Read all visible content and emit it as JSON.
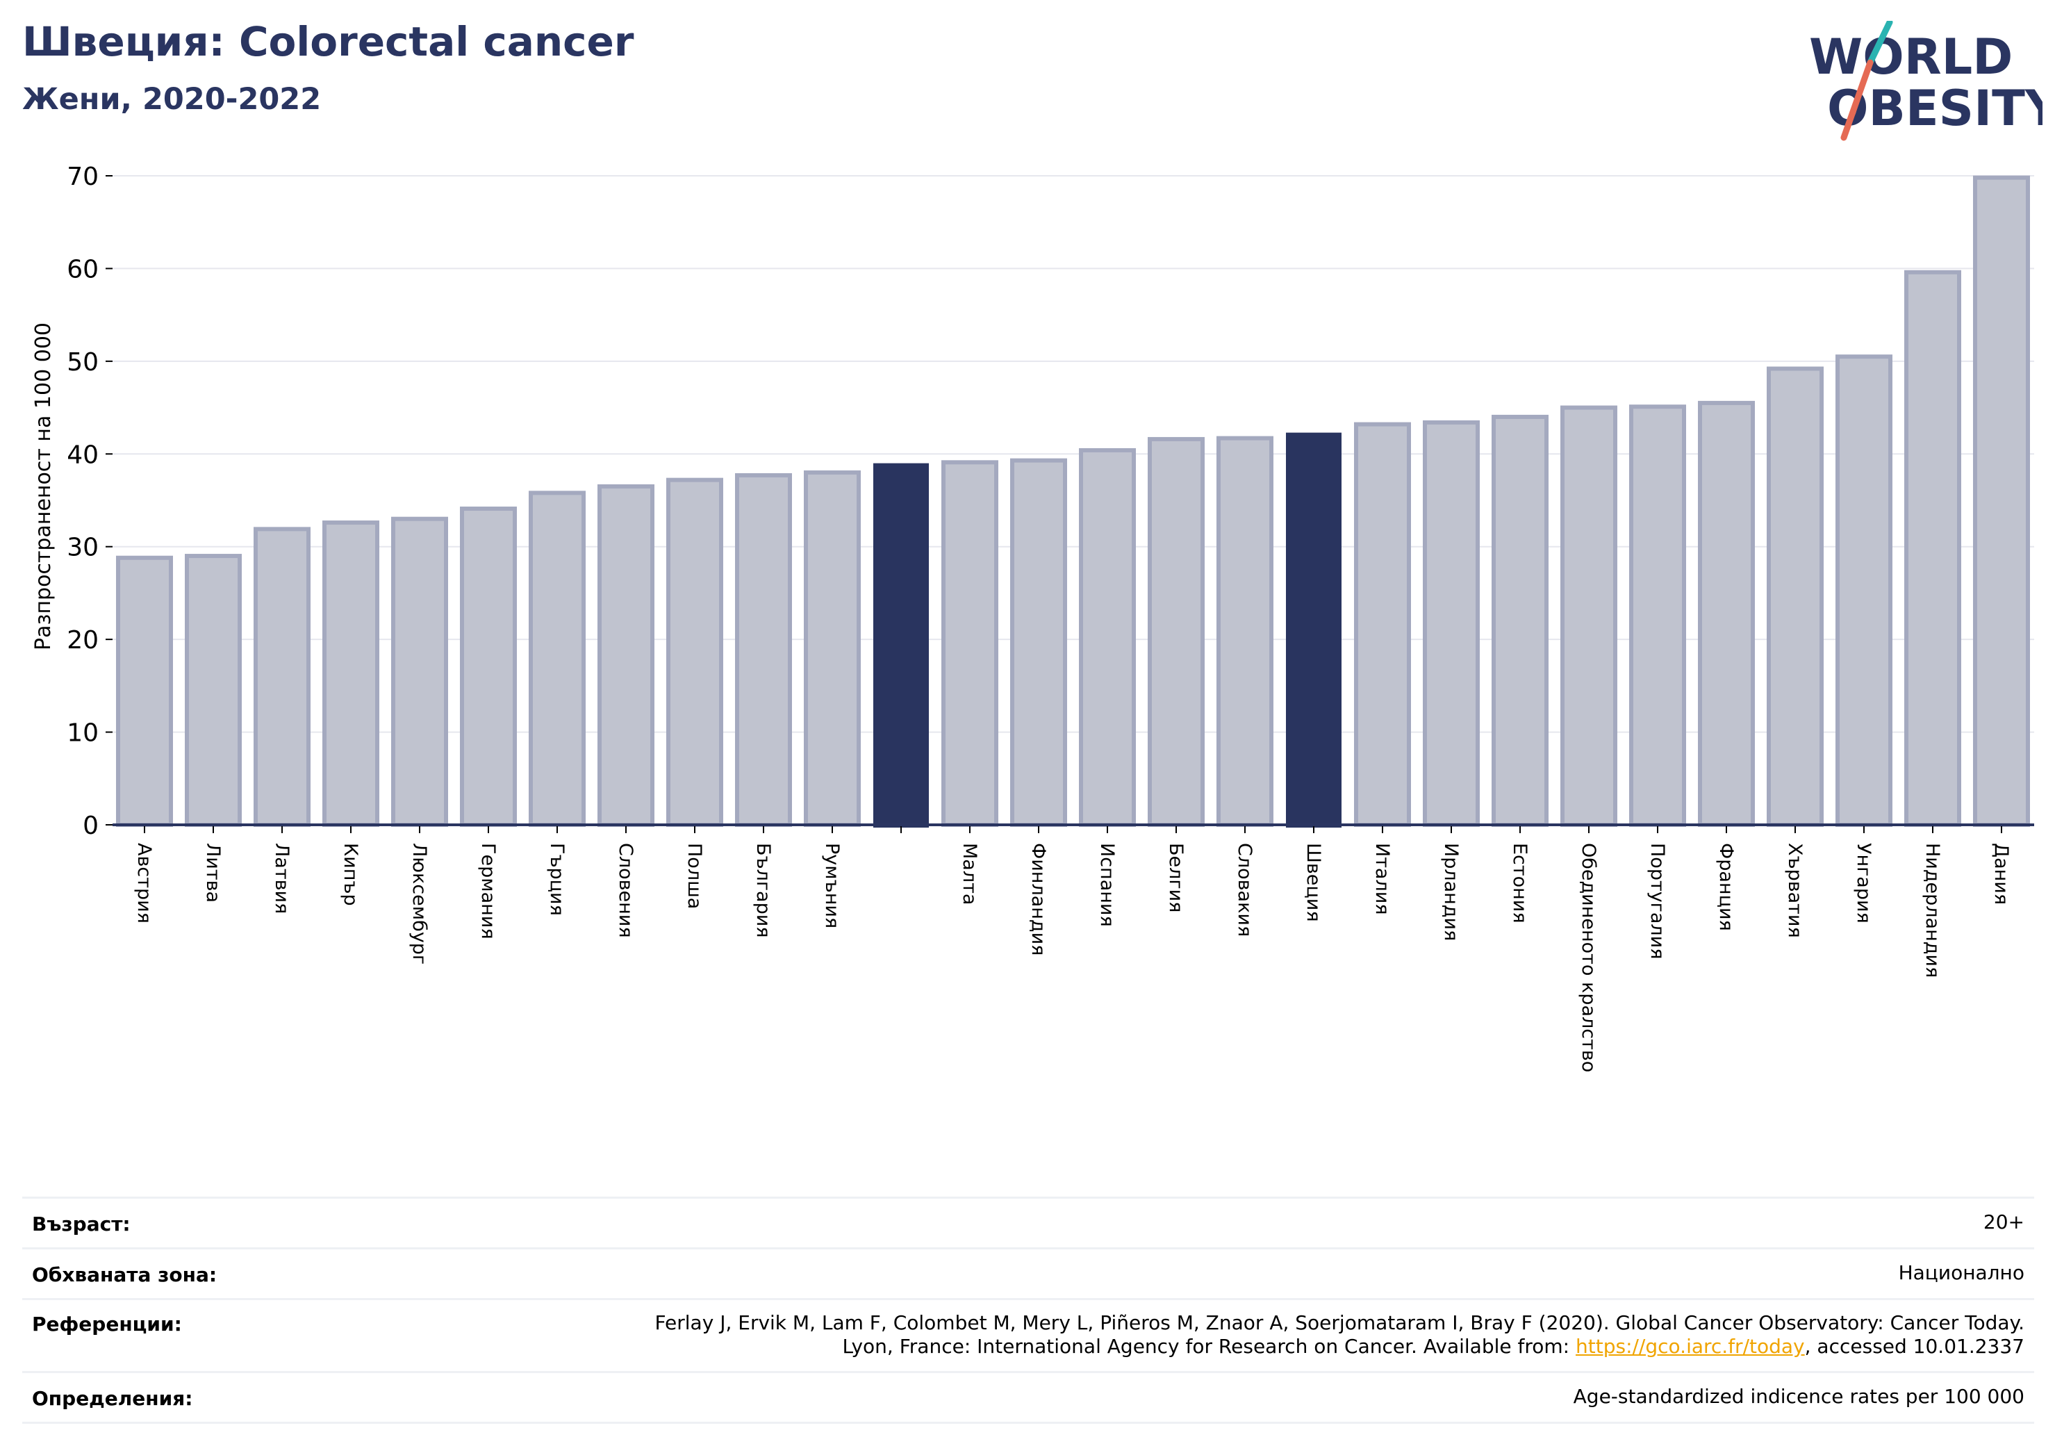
{
  "header": {
    "title": "Швеция: Colorectal cancer",
    "subtitle": "Жени, 2020-2022"
  },
  "logo": {
    "line1": "WORLD",
    "line2": "OBESITY",
    "colors": {
      "text": "#2a3561",
      "slash_teal": "#2ab3b1",
      "slash_red": "#e56a54"
    }
  },
  "colors": {
    "bar": "#c0c3cf",
    "bar_edge": "#a4a9bf",
    "highlight": "#29345f",
    "grid": "#e6e7ee",
    "axis": "#2a3561"
  },
  "chart_data": {
    "type": "bar",
    "ylabel": "Разпространеност  на 100 000",
    "ylim": [
      0,
      70
    ],
    "yticks": [
      0,
      10,
      20,
      30,
      40,
      50,
      60,
      70
    ],
    "grid": true,
    "categories": [
      "Австрия",
      "Литва",
      "Латвия",
      "Кипър",
      "Люксембург",
      "Германия",
      "Гърция",
      "Словения",
      "Полша",
      "България",
      "Румъния",
      "",
      "Малта",
      "Финландия",
      "Испания",
      "Белгия",
      "Словакия",
      "Швеция",
      "Италия",
      "Ирландия",
      "Естония",
      "Обединеното кралство",
      "Португалия",
      "Франция",
      "Хърватия",
      "Унгария",
      "Нидерландия",
      "Дания"
    ],
    "values": [
      28.8,
      29.0,
      31.9,
      32.6,
      33.0,
      34.1,
      35.8,
      36.5,
      37.2,
      37.7,
      38.0,
      39.0,
      39.1,
      39.3,
      40.4,
      41.6,
      41.7,
      42.3,
      43.2,
      43.4,
      44.0,
      45.0,
      45.1,
      45.5,
      49.2,
      50.5,
      59.6,
      69.8
    ],
    "highlighted": [
      "",
      "Швеция"
    ]
  },
  "meta": {
    "rows": [
      {
        "key": "Възраст:",
        "value": "20+"
      },
      {
        "key": "Обхваната зона:",
        "value": "Национално"
      },
      {
        "key": "Референции:",
        "value_line1": "Ferlay J, Ervik M, Lam F, Colombet M, Mery L, Piñeros M, Znaor A, Soerjomataram I, Bray F (2020). Global Cancer Observatory: Cancer Today.",
        "value_line2_pre": "Lyon, France: International Agency for Research on Cancer. Available from: ",
        "value_link": "https://gco.iarc.fr/today",
        "value_line2_post": ", accessed 10.01.2337"
      },
      {
        "key": "Определения:",
        "value": "Age-standardized indicence rates per 100 000"
      }
    ]
  }
}
